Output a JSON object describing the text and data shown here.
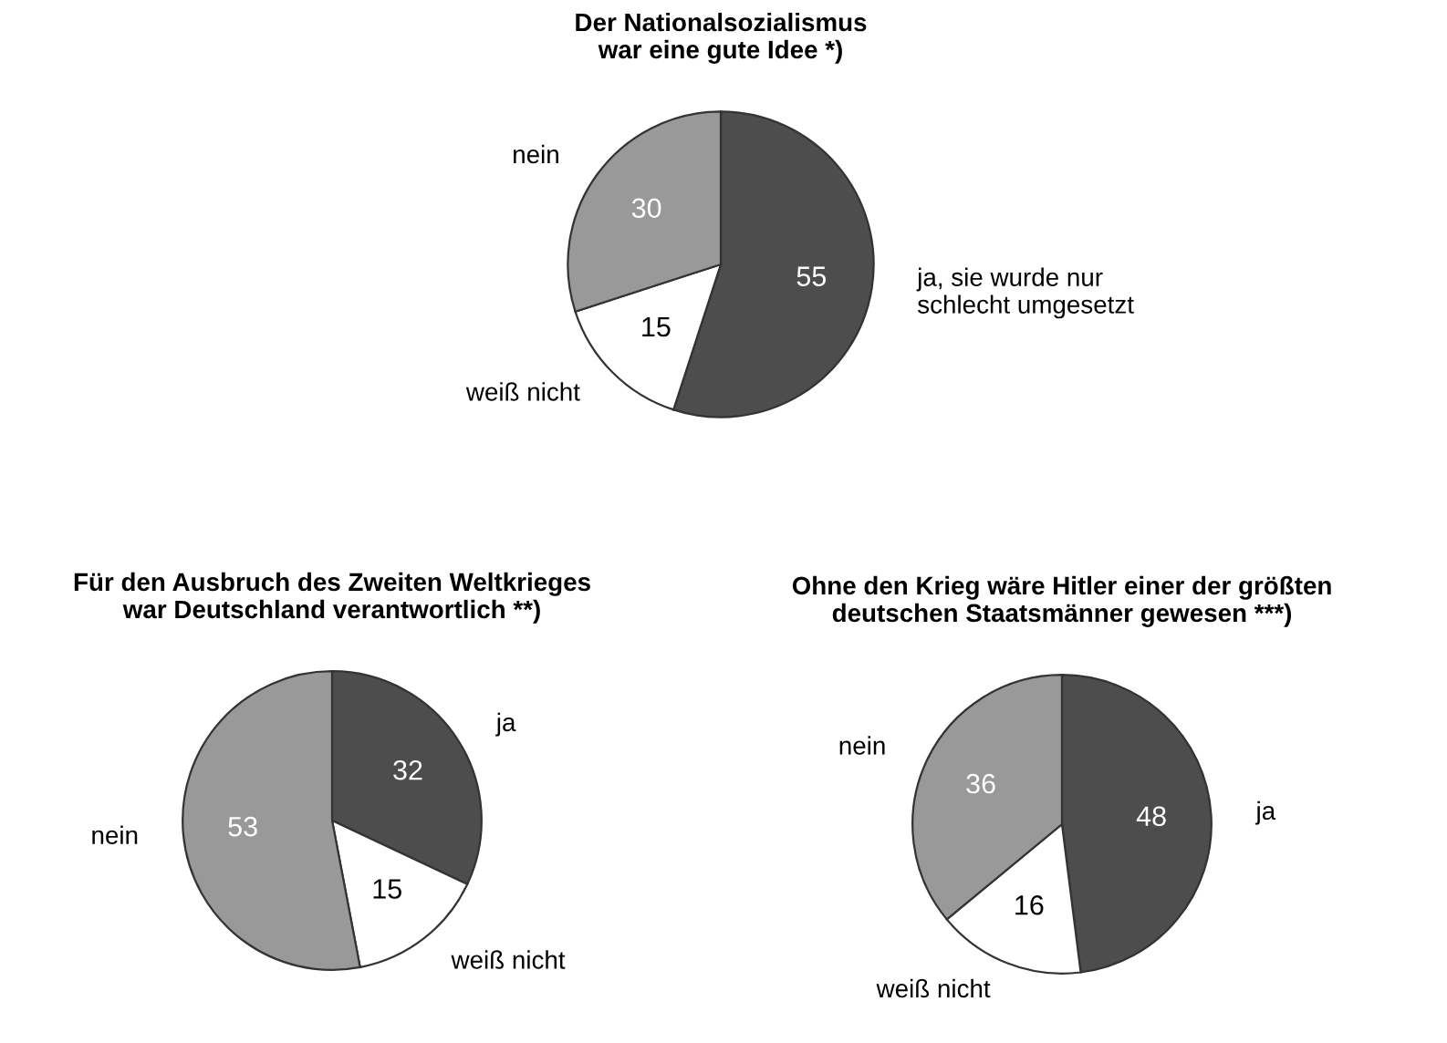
{
  "chart_data": [
    {
      "type": "pie",
      "title": "Der Nationalsozialismus\nwar eine gute Idee *)",
      "categories": [
        "ja, sie wurde nur\nschlecht umgesetzt",
        "weiß nicht",
        "nein"
      ],
      "values": [
        55,
        15,
        30
      ],
      "colors": [
        "#4d4d4d",
        "#ffffff",
        "#999999"
      ],
      "data_labels": true
    },
    {
      "type": "pie",
      "title": "Für den Ausbruch des Zweiten Weltkrieges\nwar Deutschland verantwortlich **)",
      "categories": [
        "ja",
        "weiß nicht",
        "nein"
      ],
      "values": [
        32,
        15,
        53
      ],
      "colors": [
        "#4d4d4d",
        "#ffffff",
        "#999999"
      ],
      "data_labels": true
    },
    {
      "type": "pie",
      "title": "Ohne den Krieg wäre Hitler einer der größten\ndeutschen Staatsmänner gewesen ***)",
      "categories": [
        "ja",
        "weiß nicht",
        "nein"
      ],
      "values": [
        48,
        16,
        36
      ],
      "colors": [
        "#4d4d4d",
        "#ffffff",
        "#999999"
      ],
      "data_labels": true
    }
  ]
}
